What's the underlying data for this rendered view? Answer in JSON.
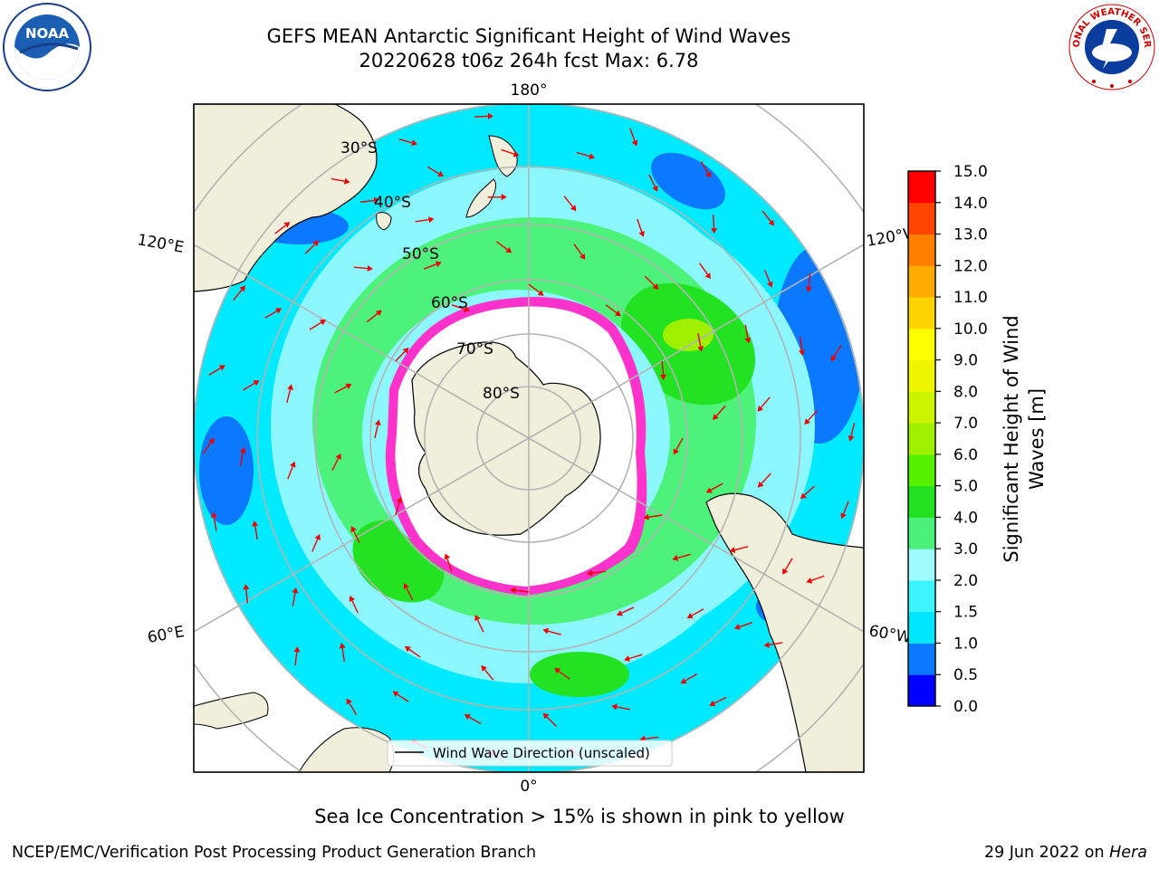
{
  "header": {
    "title": "GEFS MEAN Antarctic Significant Height of Wind Waves",
    "subtitle": "20220628 t06z 264h fcst   Max: 6.78"
  },
  "logos": {
    "left": {
      "name": "noaa-logo",
      "text": "NOAA"
    },
    "right": {
      "name": "nws-logo",
      "text": "NATIONAL WEATHER SERVICE"
    }
  },
  "map": {
    "projection": "south-polar-stereographic",
    "longitude_labels": {
      "top": "180°",
      "bottom": "0°",
      "upper_left": "120°E",
      "upper_right": "120°W",
      "lower_left": "60°E",
      "lower_right": "60°W"
    },
    "latitude_labels": [
      "30°S",
      "40°S",
      "50°S",
      "60°S",
      "70°S",
      "80°S"
    ],
    "legend": "Wind Wave Direction (unscaled)",
    "colors": {
      "land": "#efefdb",
      "ocean_low": "#00eaff",
      "ocean_mid": "#8cf7ff",
      "ocean_band": "#4df27a",
      "ice": "#ffffff",
      "ice_edge": "#ff33cc",
      "arrow": "#ee0000",
      "grid": "#b4b4b4"
    }
  },
  "colorbar": {
    "label_line1": "Significant Height of Wind",
    "label_line2": "Waves [m]",
    "ticks": [
      "0.0",
      "0.5",
      "1.0",
      "1.5",
      "2.0",
      "3.0",
      "4.0",
      "5.0",
      "6.0",
      "7.0",
      "8.0",
      "9.0",
      "10.0",
      "11.0",
      "12.0",
      "13.0",
      "14.0",
      "15.0"
    ],
    "colors": [
      "#0000ff",
      "#0a78ff",
      "#00e6ff",
      "#3cf5ff",
      "#9efcfc",
      "#4af07a",
      "#22e222",
      "#55f200",
      "#9ef000",
      "#ccf400",
      "#eef500",
      "#ffff00",
      "#ffd400",
      "#ffaa00",
      "#ff7f00",
      "#ff4500",
      "#ff0000"
    ]
  },
  "footer": {
    "note": "Sea Ice Concentration > 15% is shown in pink to yellow",
    "left": "NCEP/EMC/Verification Post Processing Product Generation Branch",
    "right_date": "29 Jun 2022 on ",
    "right_host": "Hera"
  }
}
